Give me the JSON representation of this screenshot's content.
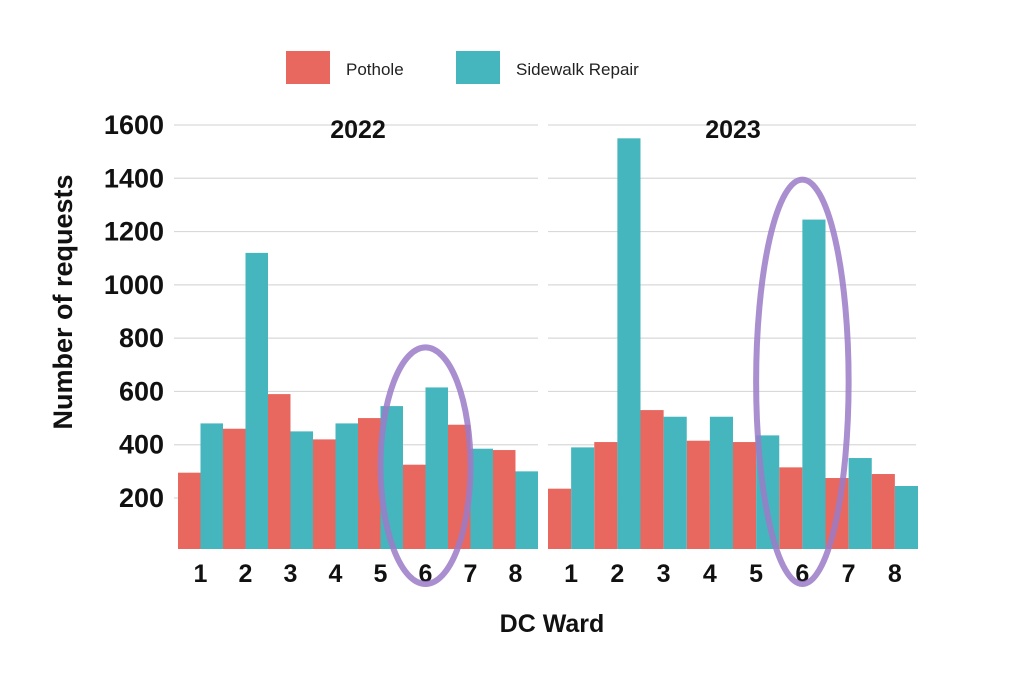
{
  "chart_data": {
    "type": "bar",
    "ylabel": "Number of requests",
    "xlabel": "DC Ward",
    "yticks": [
      200,
      400,
      600,
      800,
      1000,
      1200,
      1400,
      1600
    ],
    "ylim": [
      50,
      1600
    ],
    "grid": true,
    "legend": {
      "position": "top-center",
      "entries": [
        {
          "name": "Pothole",
          "color": "#e8685f"
        },
        {
          "name": "Sidewalk Repair",
          "color": "#45b6bd"
        }
      ]
    },
    "highlight_color": "#9b7bc8",
    "panels": [
      {
        "title": "2022",
        "categories": [
          "1",
          "2",
          "3",
          "4",
          "5",
          "6",
          "7",
          "8"
        ],
        "series": [
          {
            "name": "Pothole",
            "values": [
              295,
              460,
              590,
              420,
              500,
              325,
              475,
              380
            ]
          },
          {
            "name": "Sidewalk Repair",
            "values": [
              480,
              1120,
              450,
              480,
              545,
              615,
              385,
              300
            ]
          }
        ],
        "highlight": "6"
      },
      {
        "title": "2023",
        "categories": [
          "1",
          "2",
          "3",
          "4",
          "5",
          "6",
          "7",
          "8"
        ],
        "series": [
          {
            "name": "Pothole",
            "values": [
              235,
              410,
              530,
              415,
              410,
              315,
              275,
              290
            ]
          },
          {
            "name": "Sidewalk Repair",
            "values": [
              390,
              1550,
              505,
              505,
              435,
              1245,
              350,
              245
            ]
          }
        ],
        "highlight": "6"
      }
    ]
  }
}
